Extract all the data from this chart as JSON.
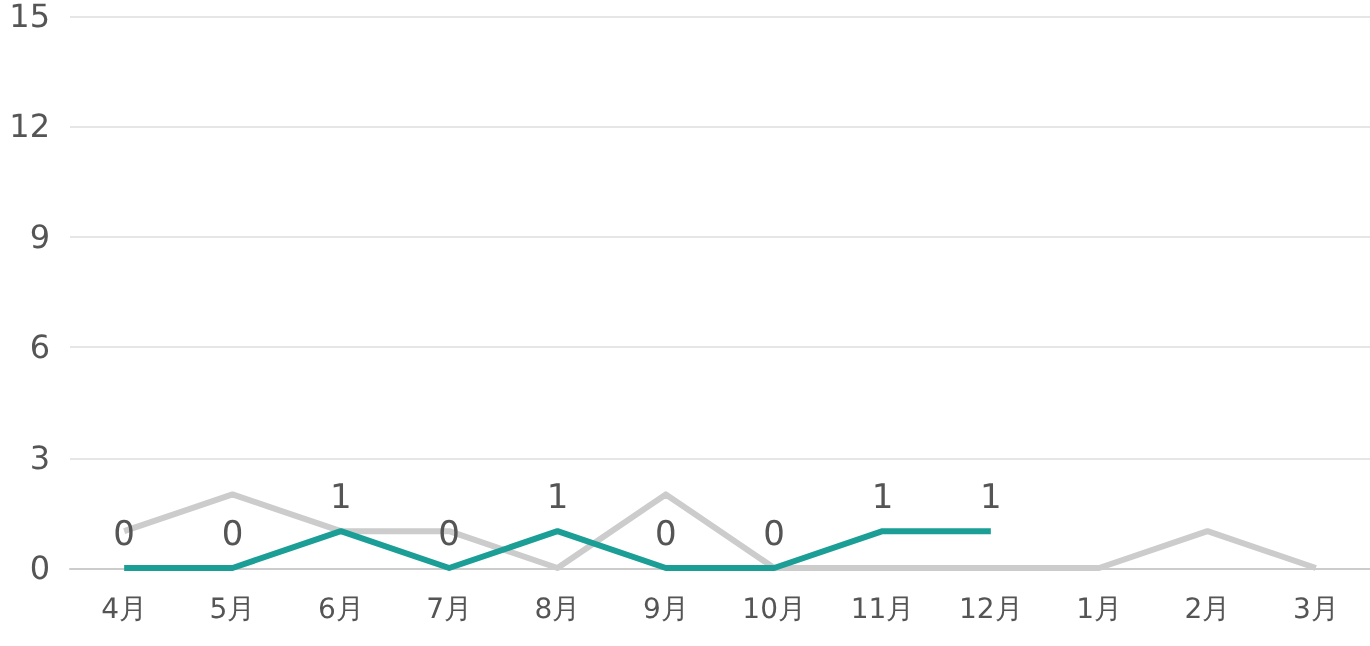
{
  "chart_data": {
    "type": "line",
    "categories": [
      "4月",
      "5月",
      "6月",
      "7月",
      "8月",
      "9月",
      "10月",
      "11月",
      "12月",
      "1月",
      "2月",
      "3月"
    ],
    "series": [
      {
        "color": "#cccccc",
        "values": [
          1,
          2,
          1,
          1,
          0,
          2,
          0,
          0,
          0,
          0,
          1,
          0
        ]
      },
      {
        "color": "#1a9e96",
        "values": [
          0,
          0,
          1,
          0,
          1,
          0,
          0,
          1,
          1,
          null,
          null,
          null
        ],
        "value_labels": [
          "0",
          "0",
          "1",
          "0",
          "1",
          "0",
          "0",
          "1",
          "1",
          null,
          null,
          null
        ]
      }
    ],
    "ylim": [
      0,
      15
    ],
    "yticks": [
      0,
      3,
      6,
      9,
      12,
      15
    ],
    "grid": "y",
    "marker": "none",
    "line_style": "solid"
  }
}
